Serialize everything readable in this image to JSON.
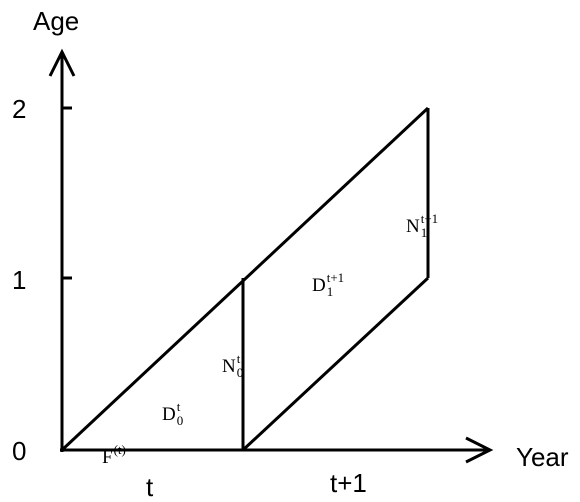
{
  "axes": {
    "y_label": "Age",
    "x_label": "Year",
    "y_ticks": [
      "0",
      "1",
      "2"
    ],
    "x_ticks": [
      "t",
      "t+1"
    ]
  },
  "labels": [
    {
      "base": "F",
      "sup": "(t)"
    },
    {
      "base": "D",
      "sub": "0",
      "sup": "t"
    },
    {
      "base": "N",
      "sub": "0",
      "sup": "t"
    },
    {
      "base": "D",
      "sub": "1",
      "sup": "t+1"
    },
    {
      "base": "N",
      "sub": "1",
      "sup": "t+1"
    }
  ]
}
